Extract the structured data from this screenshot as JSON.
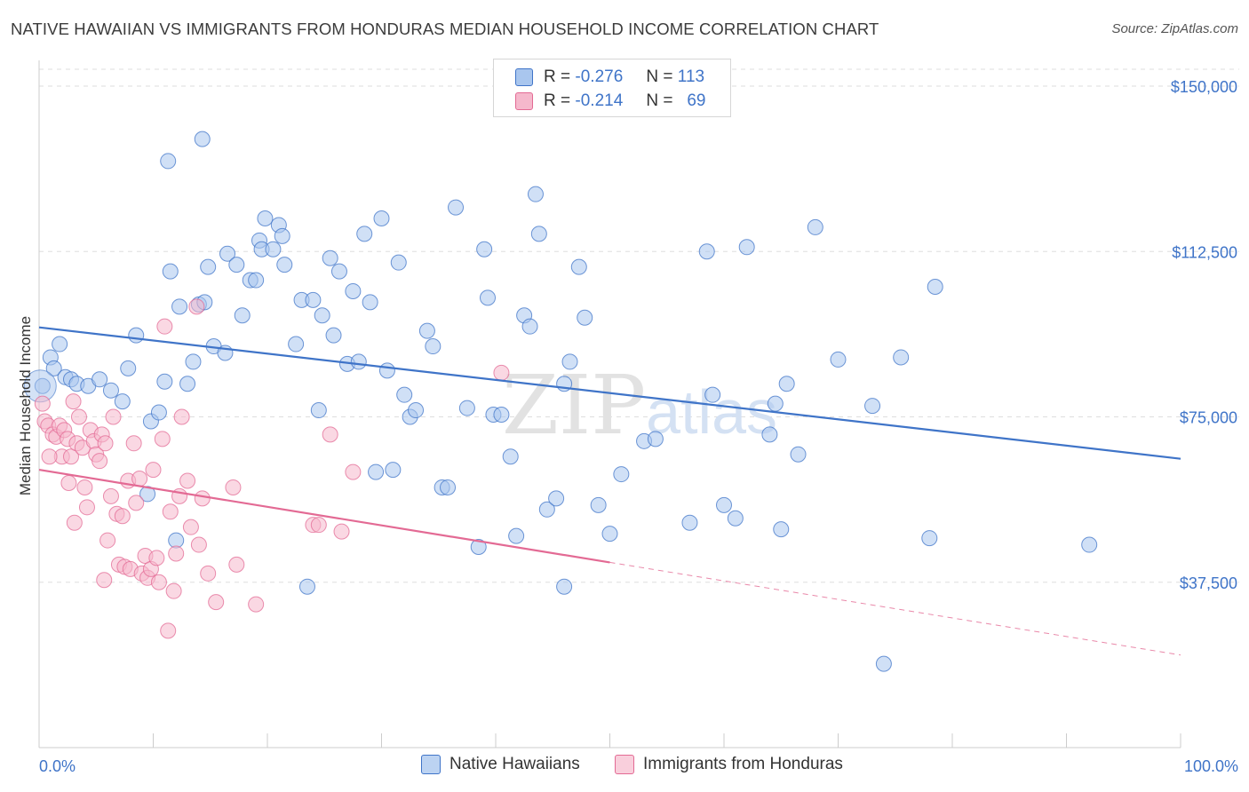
{
  "title": "NATIVE HAWAIIAN VS IMMIGRANTS FROM HONDURAS MEDIAN HOUSEHOLD INCOME CORRELATION CHART",
  "source": "Source: ZipAtlas.com",
  "watermark": "ZIPatlas",
  "legend": [
    {
      "r_label": "R =",
      "r_value": "-0.276",
      "n_label": "N =",
      "n_value": "113"
    },
    {
      "r_label": "R =",
      "r_value": "-0.214",
      "n_label": "N =",
      "n_value": "69"
    }
  ],
  "colors": {
    "blue": "#3f74c8",
    "blue_fill": "#a9c6ee",
    "pink": "#e36a94",
    "pink_fill": "#f5b8cc",
    "grid": "#dddddd",
    "tick_text": "#3f74c8"
  },
  "chart_data": {
    "type": "scatter",
    "title": "NATIVE HAWAIIAN VS IMMIGRANTS FROM HONDURAS MEDIAN HOUSEHOLD INCOME CORRELATION CHART",
    "xlabel": "",
    "ylabel": "Median Household Income",
    "xlim": [
      0,
      100
    ],
    "ylim": [
      0,
      155000
    ],
    "x_tick_labels": [
      "0.0%",
      "100.0%"
    ],
    "y_ticks": [
      37500,
      75000,
      112500,
      150000
    ],
    "y_tick_labels": [
      "$37,500",
      "$75,000",
      "$112,500",
      "$150,000"
    ],
    "grid": true,
    "legend_position": "top-center",
    "series": [
      {
        "name": "Native Hawaiians",
        "color": "#3f74c8",
        "r": -0.276,
        "n": 113,
        "trend": {
          "x0": 0,
          "y0": 95300,
          "x1": 100,
          "y1": 65500
        },
        "points": [
          [
            0.3,
            82000
          ],
          [
            1.0,
            88500
          ],
          [
            1.3,
            86000
          ],
          [
            1.8,
            91500
          ],
          [
            2.3,
            84000
          ],
          [
            2.8,
            83500
          ],
          [
            3.3,
            82500
          ],
          [
            4.3,
            82000
          ],
          [
            5.3,
            83500
          ],
          [
            6.3,
            81000
          ],
          [
            7.3,
            78500
          ],
          [
            7.8,
            86000
          ],
          [
            8.5,
            93500
          ],
          [
            9.5,
            57500
          ],
          [
            9.8,
            74000
          ],
          [
            10.5,
            76000
          ],
          [
            11.3,
            133000
          ],
          [
            11.0,
            83000
          ],
          [
            11.5,
            108000
          ],
          [
            12.3,
            100000
          ],
          [
            12.0,
            47000
          ],
          [
            13.0,
            82500
          ],
          [
            13.5,
            87500
          ],
          [
            14.0,
            100500
          ],
          [
            14.3,
            138000
          ],
          [
            14.5,
            101000
          ],
          [
            14.8,
            109000
          ],
          [
            15.3,
            91000
          ],
          [
            16.3,
            89500
          ],
          [
            16.5,
            112000
          ],
          [
            17.3,
            109500
          ],
          [
            17.8,
            98000
          ],
          [
            18.5,
            106000
          ],
          [
            19.0,
            106000
          ],
          [
            19.3,
            115000
          ],
          [
            19.5,
            113000
          ],
          [
            19.8,
            120000
          ],
          [
            20.5,
            113000
          ],
          [
            21.0,
            118500
          ],
          [
            21.3,
            116000
          ],
          [
            21.5,
            109500
          ],
          [
            22.5,
            91500
          ],
          [
            23.0,
            101500
          ],
          [
            23.5,
            36500
          ],
          [
            24.0,
            101500
          ],
          [
            24.5,
            76500
          ],
          [
            24.8,
            98000
          ],
          [
            25.5,
            111000
          ],
          [
            25.8,
            93500
          ],
          [
            26.3,
            108000
          ],
          [
            27.0,
            87000
          ],
          [
            27.5,
            103500
          ],
          [
            28.0,
            87500
          ],
          [
            28.5,
            116500
          ],
          [
            29.0,
            101000
          ],
          [
            29.5,
            62500
          ],
          [
            30.0,
            120000
          ],
          [
            30.5,
            85500
          ],
          [
            31.0,
            63000
          ],
          [
            31.5,
            110000
          ],
          [
            32.0,
            80000
          ],
          [
            32.5,
            75000
          ],
          [
            33.0,
            76500
          ],
          [
            34.0,
            94500
          ],
          [
            34.5,
            91000
          ],
          [
            35.3,
            59000
          ],
          [
            35.8,
            59000
          ],
          [
            36.5,
            122500
          ],
          [
            37.5,
            77000
          ],
          [
            38.5,
            45500
          ],
          [
            39.0,
            113000
          ],
          [
            39.3,
            102000
          ],
          [
            39.8,
            75500
          ],
          [
            40.5,
            75500
          ],
          [
            41.3,
            66000
          ],
          [
            41.8,
            48000
          ],
          [
            42.5,
            98000
          ],
          [
            43.0,
            95500
          ],
          [
            43.5,
            125500
          ],
          [
            43.8,
            116500
          ],
          [
            44.5,
            54000
          ],
          [
            45.3,
            56500
          ],
          [
            46.0,
            82500
          ],
          [
            46.5,
            87500
          ],
          [
            47.3,
            109000
          ],
          [
            47.8,
            97500
          ],
          [
            49.0,
            55000
          ],
          [
            50.0,
            48500
          ],
          [
            51.0,
            62000
          ],
          [
            53.0,
            69500
          ],
          [
            54.0,
            70000
          ],
          [
            57.0,
            51000
          ],
          [
            58.5,
            112500
          ],
          [
            59.0,
            80000
          ],
          [
            60.0,
            55000
          ],
          [
            62.0,
            113500
          ],
          [
            64.0,
            71000
          ],
          [
            64.5,
            78000
          ],
          [
            65.0,
            49500
          ],
          [
            65.5,
            82500
          ],
          [
            66.5,
            66500
          ],
          [
            68.0,
            118000
          ],
          [
            70.0,
            88000
          ],
          [
            73.0,
            77500
          ],
          [
            75.5,
            88500
          ],
          [
            78.5,
            104500
          ],
          [
            78.0,
            47500
          ],
          [
            92.0,
            46000
          ],
          [
            74.0,
            19000
          ],
          [
            61.0,
            52000
          ],
          [
            46.0,
            36500
          ]
        ]
      },
      {
        "name": "Immigrants from Honduras",
        "color": "#e36a94",
        "r": -0.214,
        "n": 69,
        "trend": {
          "x0": 0,
          "y0": 63000,
          "x1": 50,
          "y1": 42000,
          "dash_to_x": 100,
          "dash_to_y": 21000
        },
        "points": [
          [
            0.3,
            78000
          ],
          [
            0.5,
            74000
          ],
          [
            0.8,
            73000
          ],
          [
            1.2,
            71000
          ],
          [
            1.5,
            70500
          ],
          [
            1.8,
            73000
          ],
          [
            2.0,
            66000
          ],
          [
            2.2,
            72000
          ],
          [
            2.5,
            70000
          ],
          [
            2.8,
            66000
          ],
          [
            3.0,
            78500
          ],
          [
            3.3,
            69000
          ],
          [
            3.5,
            75000
          ],
          [
            3.8,
            68000
          ],
          [
            4.0,
            59000
          ],
          [
            4.2,
            54500
          ],
          [
            4.5,
            72000
          ],
          [
            4.8,
            69500
          ],
          [
            5.0,
            66500
          ],
          [
            5.3,
            65000
          ],
          [
            5.5,
            71000
          ],
          [
            5.8,
            69000
          ],
          [
            6.0,
            47000
          ],
          [
            6.3,
            57000
          ],
          [
            6.5,
            75000
          ],
          [
            6.8,
            53000
          ],
          [
            7.0,
            41500
          ],
          [
            7.3,
            52500
          ],
          [
            7.5,
            41000
          ],
          [
            7.8,
            60500
          ],
          [
            8.0,
            40500
          ],
          [
            8.3,
            69000
          ],
          [
            8.5,
            55500
          ],
          [
            8.8,
            61000
          ],
          [
            9.0,
            39500
          ],
          [
            9.3,
            43500
          ],
          [
            9.5,
            38500
          ],
          [
            9.8,
            40500
          ],
          [
            10.0,
            63000
          ],
          [
            10.3,
            43000
          ],
          [
            10.5,
            37500
          ],
          [
            10.8,
            70000
          ],
          [
            11.0,
            95500
          ],
          [
            11.3,
            26500
          ],
          [
            11.5,
            53500
          ],
          [
            11.8,
            35500
          ],
          [
            12.0,
            44000
          ],
          [
            12.3,
            57000
          ],
          [
            12.5,
            75000
          ],
          [
            13.0,
            60500
          ],
          [
            13.3,
            50000
          ],
          [
            13.8,
            100000
          ],
          [
            14.0,
            46000
          ],
          [
            14.3,
            56500
          ],
          [
            14.8,
            39500
          ],
          [
            15.5,
            33000
          ],
          [
            17.0,
            59000
          ],
          [
            17.3,
            41500
          ],
          [
            19.0,
            32500
          ],
          [
            24.0,
            50500
          ],
          [
            24.5,
            50500
          ],
          [
            25.5,
            71000
          ],
          [
            26.5,
            49000
          ],
          [
            27.5,
            62500
          ],
          [
            40.5,
            85000
          ],
          [
            5.7,
            38000
          ],
          [
            3.1,
            51000
          ],
          [
            0.9,
            66000
          ],
          [
            2.6,
            60000
          ]
        ]
      }
    ]
  },
  "bottom_legend": [
    "Native Hawaiians",
    "Immigrants from Honduras"
  ]
}
